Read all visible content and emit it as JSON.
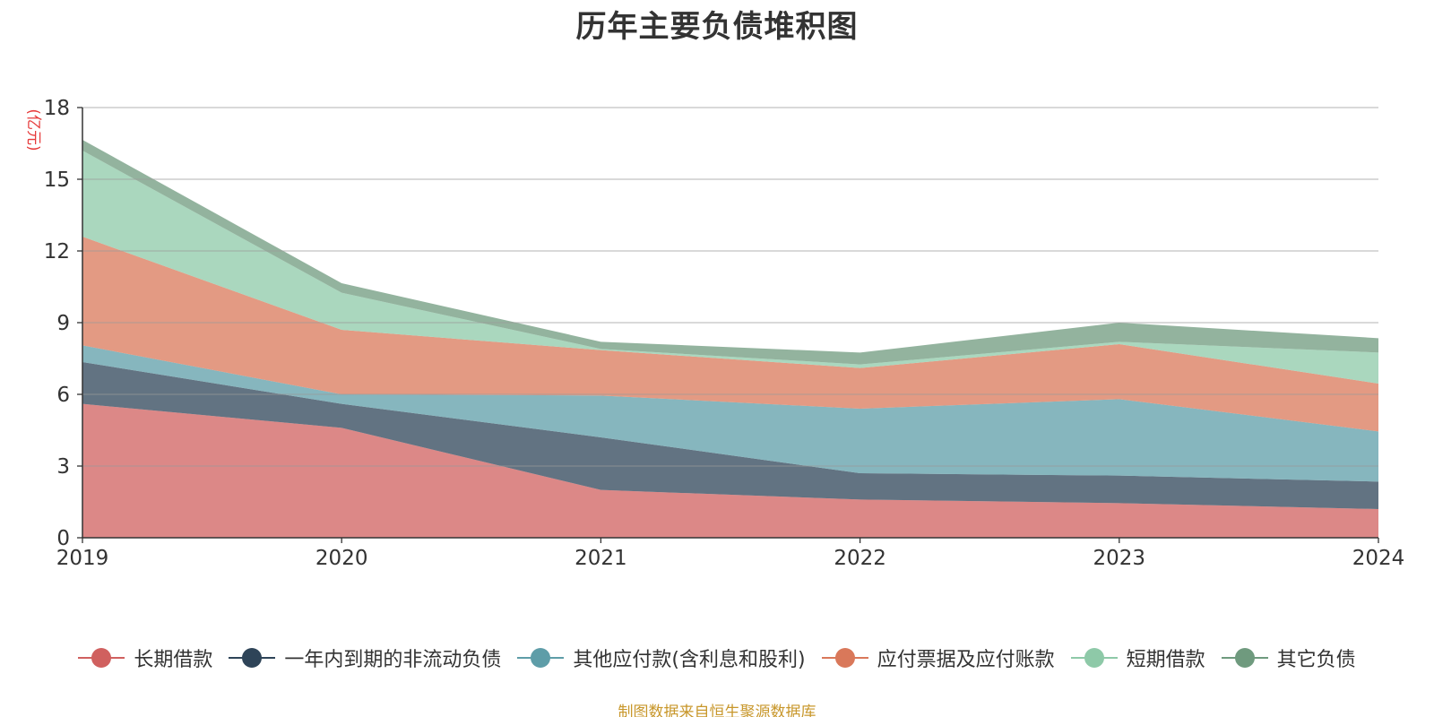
{
  "title": "历年主要负债堆积图",
  "source": "制图数据来自恒生聚源数据库",
  "chart_data": {
    "type": "area",
    "stacked": true,
    "title": "历年主要负债堆积图",
    "ylabel": "(亿元)",
    "xlabel": "",
    "x": [
      "2019",
      "2020",
      "2021",
      "2022",
      "2023",
      "2024"
    ],
    "ylim": [
      0,
      18
    ],
    "yticks": [
      "0",
      "3",
      "6",
      "9",
      "12",
      "15",
      "18"
    ],
    "grid": true,
    "legend_position": "bottom",
    "series": [
      {
        "name": "长期借款",
        "color": "#d0605f",
        "values": [
          5.6,
          4.6,
          2.0,
          1.6,
          1.45,
          1.2
        ]
      },
      {
        "name": "一年内到期的非流动负债",
        "color": "#2e4458",
        "values": [
          1.75,
          1.0,
          2.2,
          1.1,
          1.15,
          1.15
        ]
      },
      {
        "name": "其他应付款(含利息和股利)",
        "color": "#5e9da8",
        "values": [
          0.7,
          0.4,
          1.75,
          2.7,
          3.2,
          2.1
        ]
      },
      {
        "name": "应付票据及应付账款",
        "color": "#d9785a",
        "values": [
          4.55,
          2.7,
          1.9,
          1.7,
          2.3,
          2.0
        ]
      },
      {
        "name": "短期借款",
        "color": "#8ec9a8",
        "values": [
          3.6,
          1.55,
          0.05,
          0.15,
          0.1,
          1.3
        ]
      },
      {
        "name": "其它负债",
        "color": "#6f9a7e",
        "values": [
          0.45,
          0.4,
          0.3,
          0.5,
          0.8,
          0.6
        ]
      }
    ]
  }
}
